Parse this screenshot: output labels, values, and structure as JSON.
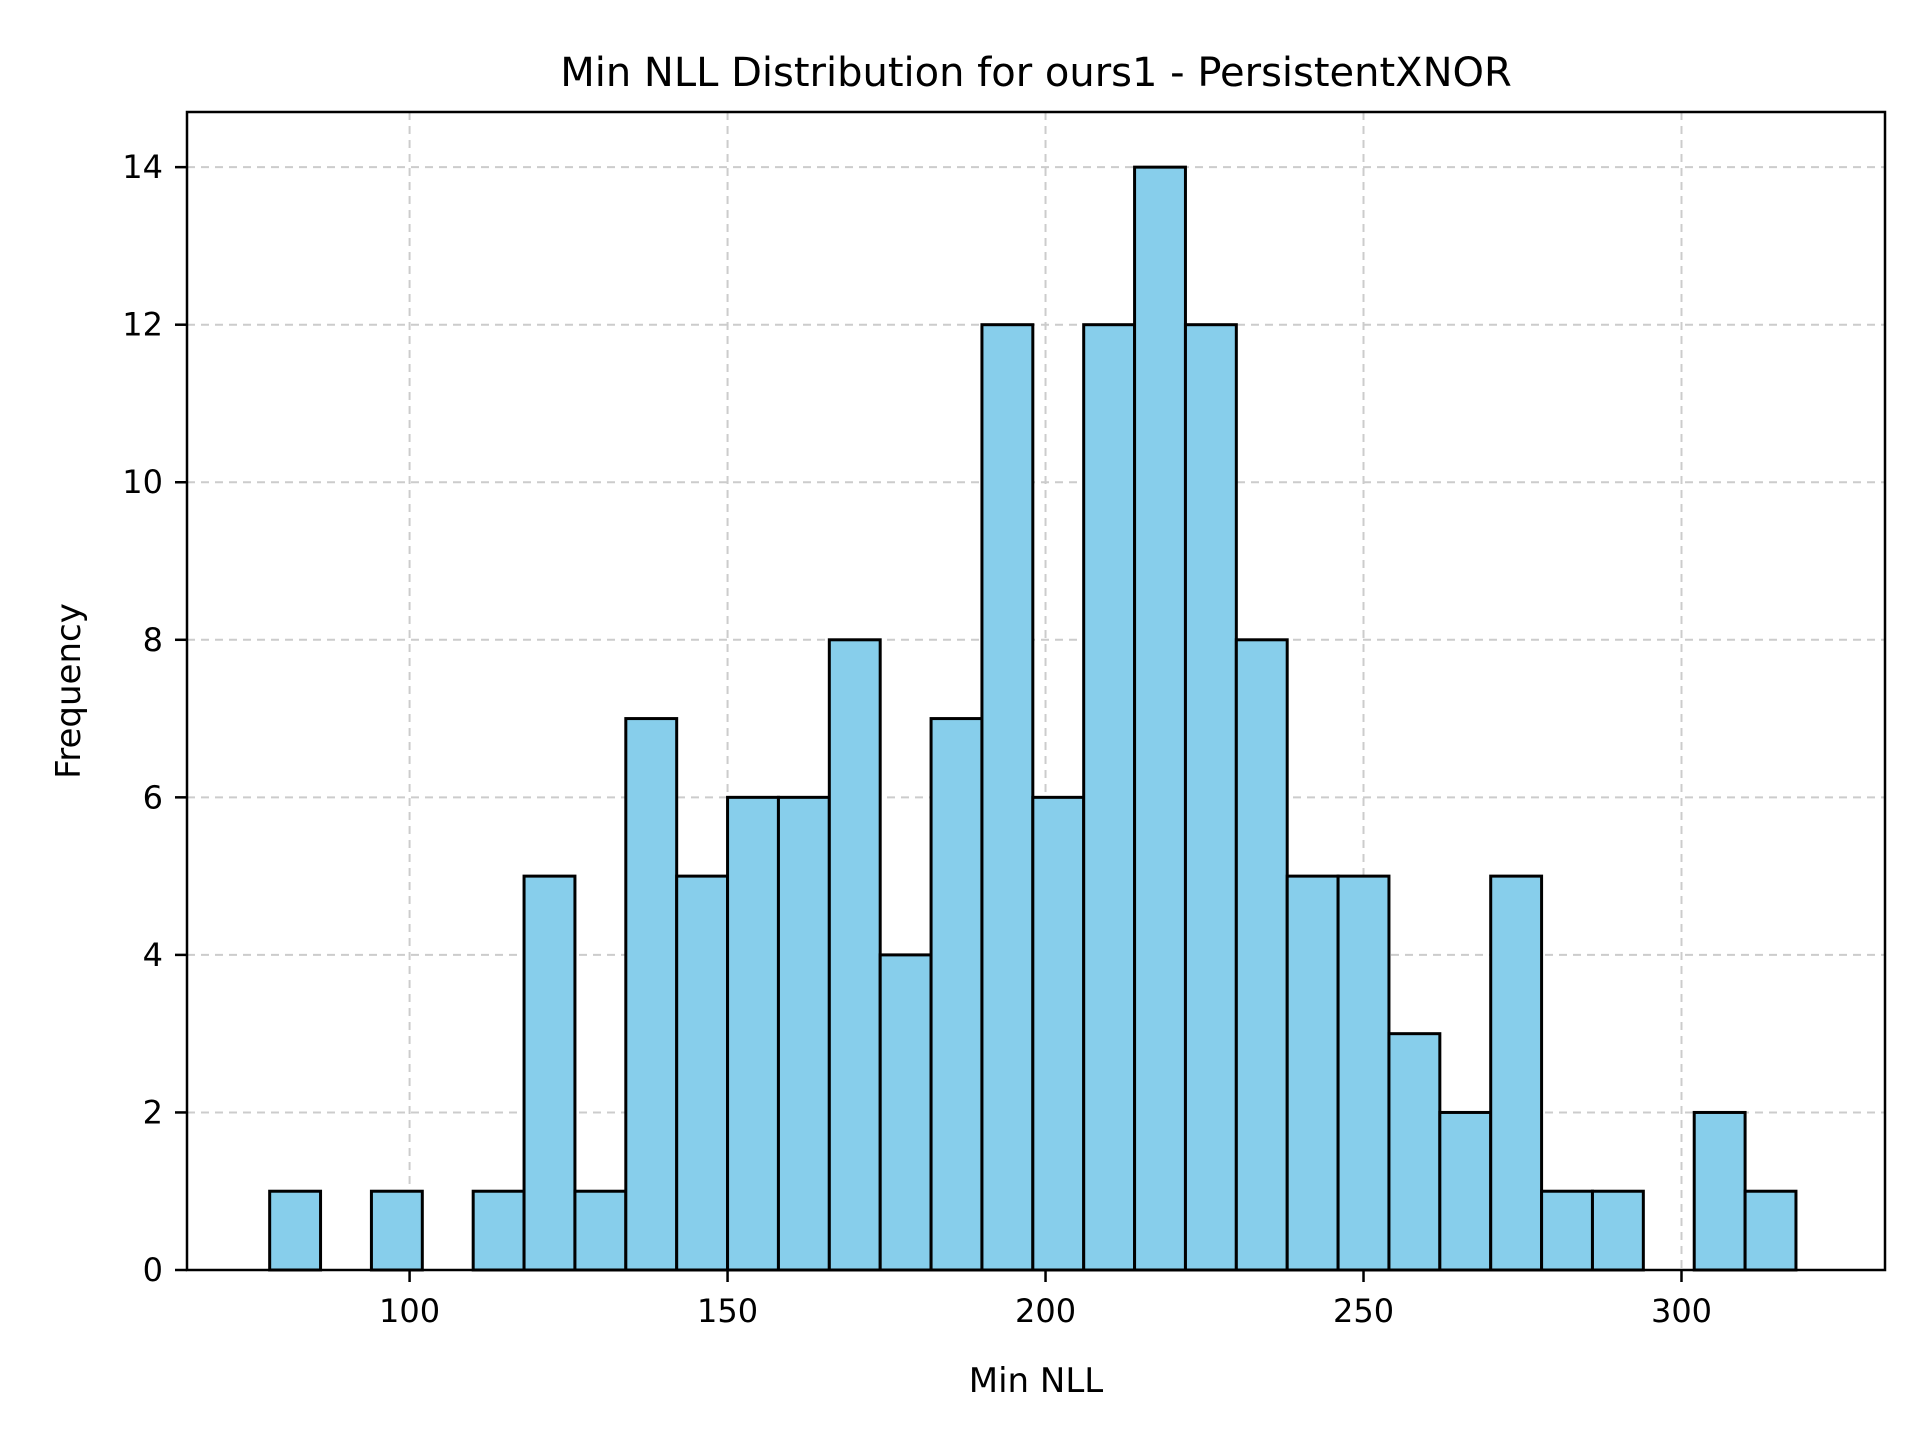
{
  "chart_data": {
    "type": "bar",
    "title": "Min NLL Distribution for ours1 - PersistentXNOR",
    "xlabel": "Min NLL",
    "ylabel": "Frequency",
    "xlim": [
      65,
      332
    ],
    "ylim": [
      0,
      14.7
    ],
    "xticks": [
      100,
      150,
      200,
      250,
      300
    ],
    "yticks": [
      0,
      2,
      4,
      6,
      8,
      10,
      12,
      14
    ],
    "grid": true,
    "bar_color": "#87CEEB",
    "edge_color": "#000000",
    "bins": [
      {
        "x0": 78,
        "x1": 86,
        "value": 1
      },
      {
        "x0": 86,
        "x1": 94,
        "value": 0
      },
      {
        "x0": 94,
        "x1": 102,
        "value": 1
      },
      {
        "x0": 102,
        "x1": 110,
        "value": 0
      },
      {
        "x0": 110,
        "x1": 118,
        "value": 1
      },
      {
        "x0": 118,
        "x1": 126,
        "value": 5
      },
      {
        "x0": 126,
        "x1": 134,
        "value": 1
      },
      {
        "x0": 134,
        "x1": 142,
        "value": 7
      },
      {
        "x0": 142,
        "x1": 150,
        "value": 5
      },
      {
        "x0": 150,
        "x1": 158,
        "value": 6
      },
      {
        "x0": 158,
        "x1": 166,
        "value": 6
      },
      {
        "x0": 166,
        "x1": 174,
        "value": 8
      },
      {
        "x0": 174,
        "x1": 182,
        "value": 4
      },
      {
        "x0": 182,
        "x1": 190,
        "value": 7
      },
      {
        "x0": 190,
        "x1": 198,
        "value": 12
      },
      {
        "x0": 198,
        "x1": 206,
        "value": 6
      },
      {
        "x0": 206,
        "x1": 214,
        "value": 12
      },
      {
        "x0": 214,
        "x1": 222,
        "value": 14
      },
      {
        "x0": 222,
        "x1": 230,
        "value": 12
      },
      {
        "x0": 230,
        "x1": 238,
        "value": 8
      },
      {
        "x0": 238,
        "x1": 246,
        "value": 5
      },
      {
        "x0": 246,
        "x1": 254,
        "value": 5
      },
      {
        "x0": 254,
        "x1": 262,
        "value": 3
      },
      {
        "x0": 262,
        "x1": 270,
        "value": 2
      },
      {
        "x0": 270,
        "x1": 278,
        "value": 5
      },
      {
        "x0": 278,
        "x1": 286,
        "value": 1
      },
      {
        "x0": 286,
        "x1": 294,
        "value": 1
      },
      {
        "x0": 294,
        "x1": 302,
        "value": 0
      },
      {
        "x0": 302,
        "x1": 310,
        "value": 2
      },
      {
        "x0": 310,
        "x1": 318,
        "value": 1
      }
    ]
  }
}
